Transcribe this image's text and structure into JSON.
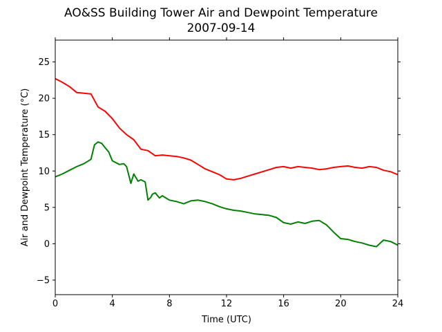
{
  "chart_data": {
    "type": "line",
    "title": "AO&SS Building Tower Air and Dewpoint Temperature",
    "subtitle": "2007-09-14",
    "xlabel": "Time (UTC)",
    "ylabel": "Air and Dewpoint Temperature (°C)",
    "xlim": [
      0,
      24
    ],
    "ylim": [
      -7,
      28
    ],
    "xticks": [
      0,
      4,
      8,
      12,
      16,
      20,
      24
    ],
    "yticks": [
      -5,
      0,
      5,
      10,
      15,
      20,
      25
    ],
    "grid": false,
    "legend": "none",
    "series": [
      {
        "color": "#ff0000",
        "x": [
          0,
          0.5,
          1,
          1.5,
          2,
          2.5,
          3,
          3.5,
          4,
          4.5,
          5,
          5.5,
          6,
          6.5,
          7,
          7.5,
          8,
          8.5,
          9,
          9.5,
          10,
          10.5,
          11,
          11.5,
          12,
          12.5,
          13,
          13.5,
          14,
          14.5,
          15,
          15.5,
          16,
          16.5,
          17,
          17.5,
          18,
          18.5,
          19,
          19.5,
          20,
          20.5,
          21,
          21.5,
          22,
          22.5,
          23,
          23.5,
          24
        ],
        "y": [
          22.7,
          22.2,
          21.6,
          20.8,
          20.7,
          20.6,
          18.8,
          18.2,
          17.2,
          15.9,
          15.0,
          14.3,
          13.0,
          12.8,
          12.1,
          12.2,
          12.1,
          12.0,
          11.8,
          11.5,
          10.9,
          10.3,
          9.9,
          9.5,
          8.9,
          8.8,
          9.0,
          9.3,
          9.6,
          9.9,
          10.2,
          10.5,
          10.6,
          10.4,
          10.6,
          10.5,
          10.4,
          10.2,
          10.3,
          10.5,
          10.6,
          10.7,
          10.5,
          10.4,
          10.6,
          10.5,
          10.1,
          9.9,
          9.5
        ]
      },
      {
        "color": "#008000",
        "x": [
          0,
          0.5,
          1,
          1.5,
          2,
          2.5,
          2.75,
          3,
          3.25,
          3.5,
          3.75,
          4,
          4.5,
          4.8,
          5,
          5.3,
          5.5,
          5.8,
          6,
          6.3,
          6.5,
          6.7,
          6.8,
          7,
          7.3,
          7.5,
          8,
          8.5,
          9,
          9.5,
          10,
          10.5,
          11,
          11.5,
          12,
          12.5,
          13,
          13.5,
          14,
          14.5,
          15,
          15.5,
          16,
          16.5,
          17,
          17.5,
          18,
          18.5,
          19,
          19.5,
          20,
          20.5,
          21,
          21.5,
          22,
          22.5,
          23,
          23.5,
          24
        ],
        "y": [
          9.2,
          9.6,
          10.1,
          10.6,
          11.0,
          11.6,
          13.6,
          14.0,
          13.8,
          13.2,
          12.6,
          11.4,
          10.9,
          11.0,
          10.6,
          8.3,
          9.6,
          8.6,
          8.8,
          8.5,
          6.0,
          6.4,
          6.8,
          7.0,
          6.3,
          6.6,
          6.0,
          5.8,
          5.5,
          5.9,
          6.0,
          5.8,
          5.5,
          5.1,
          4.8,
          4.6,
          4.5,
          4.3,
          4.1,
          4.0,
          3.9,
          3.6,
          2.9,
          2.7,
          3.0,
          2.8,
          3.1,
          3.2,
          2.6,
          1.6,
          0.7,
          0.6,
          0.3,
          0.1,
          -0.2,
          -0.4,
          0.5,
          0.3,
          -0.2
        ]
      }
    ]
  }
}
